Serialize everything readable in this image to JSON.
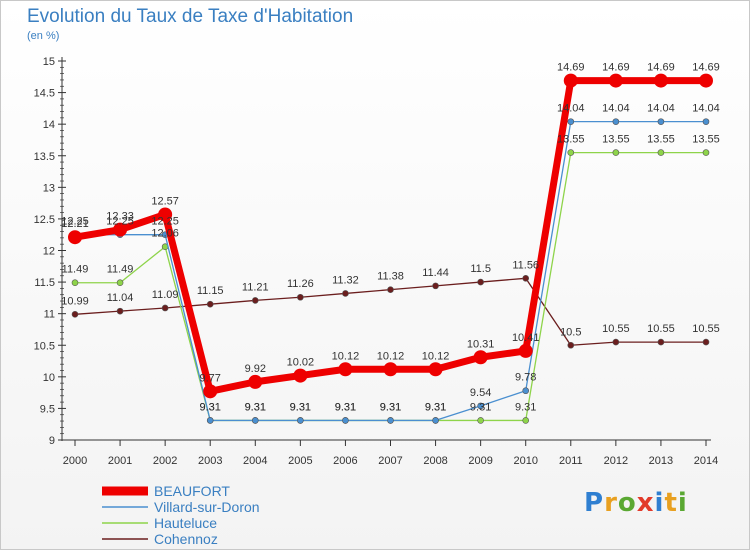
{
  "title": "Evolution du Taux de Taxe d'Habitation",
  "subtitle": "(en %)",
  "logo_text": "Proxiti",
  "chart_data": {
    "type": "line",
    "title": "Evolution du Taux de Taxe d'Habitation",
    "subtitle": "(en %)",
    "categories": [
      "2000",
      "2001",
      "2002",
      "2003",
      "2004",
      "2005",
      "2006",
      "2007",
      "2008",
      "2009",
      "2010",
      "2011",
      "2012",
      "2013",
      "2014"
    ],
    "yticks": [
      "9",
      "9.5",
      "10",
      "10.5",
      "11",
      "11.5",
      "12",
      "12.5",
      "13",
      "13.5",
      "14",
      "14.5",
      "15"
    ],
    "ylim": [
      9,
      15
    ],
    "grid": false,
    "legend_position": "bottom-left",
    "series": [
      {
        "name": "Cohennoz",
        "color": "#6b1e1e",
        "values": [
          10.99,
          11.04,
          11.09,
          11.15,
          11.21,
          11.26,
          11.32,
          11.38,
          11.44,
          11.5,
          11.56,
          10.5,
          10.55,
          10.55,
          10.55
        ],
        "labels": [
          "10.99",
          "11.04",
          "11.09",
          "11.15",
          "11.21",
          "11.26",
          "11.32",
          "11.38",
          "11.44",
          "11.5",
          "11.56",
          "10.5",
          "10.55",
          "10.55",
          "10.55"
        ]
      },
      {
        "name": "Hauteluce",
        "color": "#8ed44a",
        "values": [
          11.49,
          11.49,
          12.06,
          9.31,
          9.31,
          9.31,
          9.31,
          9.31,
          9.31,
          9.31,
          9.31,
          13.55,
          13.55,
          13.55,
          13.55
        ],
        "labels": [
          "11.49",
          "11.49",
          "12.06",
          "9.31",
          "9.31",
          "9.31",
          "9.31",
          "9.31",
          "9.31",
          "9.31",
          "9.31",
          "13.55",
          "13.55",
          "13.55",
          "13.55"
        ]
      },
      {
        "name": "Villard-sur-Doron",
        "color": "#4a8fd0",
        "values": [
          12.25,
          12.25,
          12.25,
          9.31,
          9.31,
          9.31,
          9.31,
          9.31,
          9.31,
          9.54,
          9.78,
          14.04,
          14.04,
          14.04,
          14.04
        ],
        "labels": [
          "12.25",
          "12.25",
          "12.25",
          "9.31",
          "9.31",
          "9.31",
          "9.31",
          "9.31",
          "9.31",
          "9.54",
          "9.78",
          "14.04",
          "14.04",
          "14.04",
          "14.04"
        ]
      },
      {
        "name": "BEAUFORT",
        "color": "#ee0000",
        "values": [
          12.21,
          12.33,
          12.57,
          9.77,
          9.92,
          10.02,
          10.12,
          10.12,
          10.12,
          10.31,
          10.41,
          14.69,
          14.69,
          14.69,
          14.69
        ],
        "labels": [
          "12.21",
          "12.33",
          "12.57",
          "9.77",
          "9.92",
          "10.02",
          "10.12",
          "10.12",
          "10.12",
          "10.31",
          "10.41",
          "14.69",
          "14.69",
          "14.69",
          "14.69"
        ]
      }
    ],
    "legend": [
      "BEAUFORT",
      "Villard-sur-Doron",
      "Hauteluce",
      "Cohennoz"
    ]
  }
}
